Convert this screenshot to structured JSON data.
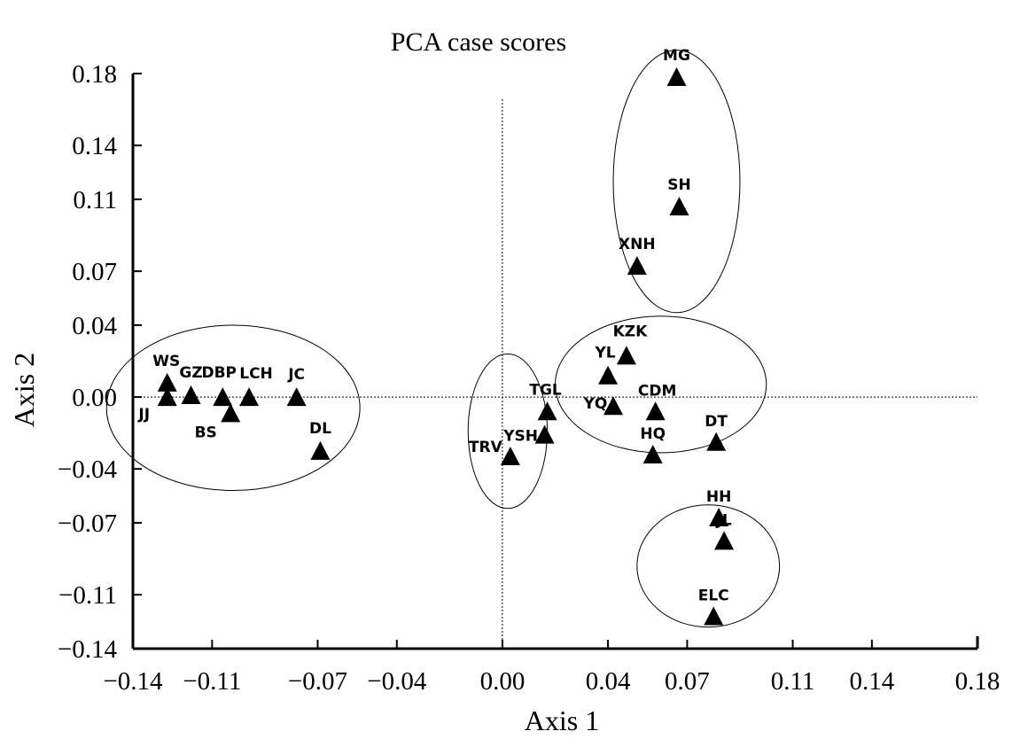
{
  "chart_data": {
    "type": "scatter",
    "title": "PCA case scores",
    "xlabel": "Axis 1",
    "ylabel": "Axis 2",
    "xlim": [
      -0.14,
      0.18
    ],
    "ylim": [
      -0.14,
      0.18
    ],
    "x_ticks": [
      -0.14,
      -0.11,
      -0.07,
      -0.04,
      0.0,
      0.04,
      0.07,
      0.11,
      0.14,
      0.18
    ],
    "y_ticks": [
      -0.14,
      -0.11,
      -0.07,
      -0.04,
      0.0,
      0.04,
      0.07,
      0.11,
      0.14,
      0.18
    ],
    "x_tick_labels": [
      "−0.14",
      "−0.11",
      "−0.07",
      "−0.04",
      "0.00",
      "0.04",
      "0.07",
      "0.11",
      "0.14",
      "0.18"
    ],
    "y_tick_labels": [
      "−0.14",
      "−0.11",
      "−0.07",
      "−0.04",
      "0.00",
      "0.04",
      "0.07",
      "0.11",
      "0.14",
      "0.18"
    ],
    "grid": false,
    "reference_lines": [
      {
        "axis": "x",
        "value": 0.0,
        "style": "dotted"
      },
      {
        "axis": "y",
        "value": 0.0,
        "style": "dotted"
      }
    ],
    "marker": "triangle",
    "marker_color": "#000000",
    "points": [
      {
        "label": "MG",
        "x": 0.066,
        "y": 0.178
      },
      {
        "label": "SH",
        "x": 0.067,
        "y": 0.106
      },
      {
        "label": "XNH",
        "x": 0.051,
        "y": 0.073
      },
      {
        "label": "KZK",
        "x": 0.047,
        "y": 0.023
      },
      {
        "label": "YL",
        "x": 0.04,
        "y": 0.012
      },
      {
        "label": "YQ",
        "x": 0.042,
        "y": -0.005
      },
      {
        "label": "CDM",
        "x": 0.058,
        "y": -0.008
      },
      {
        "label": "HQ",
        "x": 0.057,
        "y": -0.032
      },
      {
        "label": "DT",
        "x": 0.081,
        "y": -0.025
      },
      {
        "label": "HH",
        "x": 0.082,
        "y": -0.067
      },
      {
        "label": "JL",
        "x": 0.084,
        "y": -0.08
      },
      {
        "label": "ELC",
        "x": 0.08,
        "y": -0.122
      },
      {
        "label": "TGL",
        "x": 0.017,
        "y": -0.008
      },
      {
        "label": "YSH",
        "x": 0.016,
        "y": -0.021
      },
      {
        "label": "TRV",
        "x": 0.003,
        "y": -0.033
      },
      {
        "label": "WS",
        "x": -0.127,
        "y": 0.008
      },
      {
        "label": "JJ",
        "x": -0.127,
        "y": 0.0
      },
      {
        "label": "GZ",
        "x": -0.118,
        "y": 0.001
      },
      {
        "label": "DBP",
        "x": -0.106,
        "y": 0.0
      },
      {
        "label": "BS",
        "x": -0.103,
        "y": -0.009
      },
      {
        "label": "LCH",
        "x": -0.096,
        "y": 0.0
      },
      {
        "label": "JC",
        "x": -0.078,
        "y": 0.0
      },
      {
        "label": "DL",
        "x": -0.069,
        "y": -0.03
      }
    ],
    "groups": [
      {
        "cx": 0.066,
        "cy": 0.12,
        "rx": 0.024,
        "ry": 0.073
      },
      {
        "cx": 0.06,
        "cy": 0.007,
        "rx": 0.04,
        "ry": 0.038
      },
      {
        "cx": 0.078,
        "cy": -0.094,
        "rx": 0.027,
        "ry": 0.034
      },
      {
        "cx": 0.002,
        "cy": -0.019,
        "rx": 0.015,
        "ry": 0.043
      },
      {
        "cx": -0.102,
        "cy": -0.006,
        "rx": 0.048,
        "ry": 0.046
      }
    ]
  }
}
